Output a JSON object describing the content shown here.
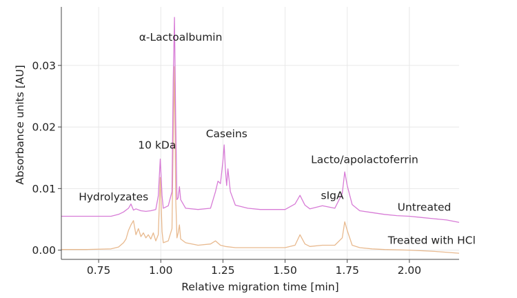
{
  "chart_data": {
    "type": "line",
    "title": "",
    "xlabel": "Relative migration time [min]",
    "ylabel": "Absorbance units [AU]",
    "xlim": [
      0.6,
      2.2
    ],
    "ylim": [
      -0.0015,
      0.0395
    ],
    "xticks": [
      0.75,
      1.0,
      1.25,
      1.5,
      1.75,
      2.0
    ],
    "xtick_labels": [
      "0.75",
      "1.00",
      "1.25",
      "1.50",
      "1.75",
      "2.00"
    ],
    "yticks": [
      0.0,
      0.01,
      0.02,
      0.03
    ],
    "ytick_labels": [
      "0.00",
      "0.01",
      "0.02",
      "0.03"
    ],
    "grid": true,
    "series": [
      {
        "name": "Untreated",
        "color": "#d77bd6",
        "points": [
          [
            0.6,
            0.0055
          ],
          [
            0.7,
            0.0055
          ],
          [
            0.8,
            0.0055
          ],
          [
            0.83,
            0.0058
          ],
          [
            0.85,
            0.0062
          ],
          [
            0.87,
            0.0068
          ],
          [
            0.88,
            0.0075
          ],
          [
            0.89,
            0.0065
          ],
          [
            0.9,
            0.0067
          ],
          [
            0.92,
            0.0064
          ],
          [
            0.94,
            0.0063
          ],
          [
            0.96,
            0.0064
          ],
          [
            0.98,
            0.0066
          ],
          [
            0.99,
            0.0088
          ],
          [
            0.998,
            0.0148
          ],
          [
            1.005,
            0.0088
          ],
          [
            1.01,
            0.0068
          ],
          [
            1.03,
            0.0072
          ],
          [
            1.045,
            0.0095
          ],
          [
            1.05,
            0.0275
          ],
          [
            1.055,
            0.0378
          ],
          [
            1.06,
            0.0208
          ],
          [
            1.065,
            0.0082
          ],
          [
            1.07,
            0.0085
          ],
          [
            1.075,
            0.0103
          ],
          [
            1.08,
            0.0082
          ],
          [
            1.1,
            0.0068
          ],
          [
            1.15,
            0.0066
          ],
          [
            1.2,
            0.0068
          ],
          [
            1.22,
            0.0095
          ],
          [
            1.23,
            0.0112
          ],
          [
            1.24,
            0.0108
          ],
          [
            1.25,
            0.0145
          ],
          [
            1.255,
            0.0171
          ],
          [
            1.26,
            0.013
          ],
          [
            1.265,
            0.0105
          ],
          [
            1.27,
            0.0132
          ],
          [
            1.28,
            0.0095
          ],
          [
            1.3,
            0.0073
          ],
          [
            1.35,
            0.0068
          ],
          [
            1.4,
            0.0066
          ],
          [
            1.5,
            0.0066
          ],
          [
            1.54,
            0.0075
          ],
          [
            1.56,
            0.0089
          ],
          [
            1.58,
            0.0073
          ],
          [
            1.6,
            0.0067
          ],
          [
            1.65,
            0.0072
          ],
          [
            1.7,
            0.0068
          ],
          [
            1.73,
            0.0092
          ],
          [
            1.74,
            0.0127
          ],
          [
            1.75,
            0.0105
          ],
          [
            1.77,
            0.0074
          ],
          [
            1.8,
            0.0064
          ],
          [
            1.85,
            0.0061
          ],
          [
            1.9,
            0.0058
          ],
          [
            1.95,
            0.0056
          ],
          [
            2.0,
            0.0055
          ],
          [
            2.05,
            0.0053
          ],
          [
            2.1,
            0.0051
          ],
          [
            2.15,
            0.0049
          ],
          [
            2.2,
            0.0045
          ]
        ]
      },
      {
        "name": "Treated with HCl",
        "color": "#e8b98e",
        "points": [
          [
            0.6,
            0.0001
          ],
          [
            0.7,
            0.0001
          ],
          [
            0.8,
            0.0002
          ],
          [
            0.83,
            0.0005
          ],
          [
            0.85,
            0.0012
          ],
          [
            0.86,
            0.0018
          ],
          [
            0.87,
            0.0032
          ],
          [
            0.88,
            0.0041
          ],
          [
            0.89,
            0.0048
          ],
          [
            0.9,
            0.0025
          ],
          [
            0.91,
            0.0035
          ],
          [
            0.92,
            0.0022
          ],
          [
            0.93,
            0.0028
          ],
          [
            0.94,
            0.002
          ],
          [
            0.95,
            0.0025
          ],
          [
            0.96,
            0.0018
          ],
          [
            0.97,
            0.0028
          ],
          [
            0.98,
            0.0015
          ],
          [
            0.99,
            0.0025
          ],
          [
            0.998,
            0.0118
          ],
          [
            1.005,
            0.003
          ],
          [
            1.01,
            0.0012
          ],
          [
            1.03,
            0.0015
          ],
          [
            1.045,
            0.0035
          ],
          [
            1.05,
            0.0182
          ],
          [
            1.055,
            0.0298
          ],
          [
            1.06,
            0.0085
          ],
          [
            1.065,
            0.002
          ],
          [
            1.07,
            0.0028
          ],
          [
            1.075,
            0.0041
          ],
          [
            1.08,
            0.0018
          ],
          [
            1.1,
            0.0012
          ],
          [
            1.15,
            0.0008
          ],
          [
            1.2,
            0.001
          ],
          [
            1.22,
            0.0015
          ],
          [
            1.24,
            0.0008
          ],
          [
            1.26,
            0.0006
          ],
          [
            1.3,
            0.0004
          ],
          [
            1.4,
            0.0004
          ],
          [
            1.5,
            0.0004
          ],
          [
            1.54,
            0.0008
          ],
          [
            1.56,
            0.0025
          ],
          [
            1.58,
            0.001
          ],
          [
            1.6,
            0.0006
          ],
          [
            1.65,
            0.0008
          ],
          [
            1.7,
            0.0008
          ],
          [
            1.73,
            0.002
          ],
          [
            1.74,
            0.0046
          ],
          [
            1.75,
            0.0032
          ],
          [
            1.77,
            0.0008
          ],
          [
            1.8,
            0.0004
          ],
          [
            1.85,
            0.0002
          ],
          [
            1.9,
            0.0001
          ],
          [
            2.0,
            0.0
          ],
          [
            2.1,
            -0.0002
          ],
          [
            2.2,
            -0.0005
          ]
        ]
      }
    ],
    "annotations": [
      {
        "text": "α-Lactoalbumin",
        "x": 1.08,
        "y": 0.034
      },
      {
        "text": "10 kDa",
        "x": 0.985,
        "y": 0.0165
      },
      {
        "text": "Caseins",
        "x": 1.265,
        "y": 0.0183
      },
      {
        "text": "Hydrolyzates",
        "x": 0.81,
        "y": 0.0081
      },
      {
        "text": "sIgA",
        "x": 1.69,
        "y": 0.0083
      },
      {
        "text": "Lacto/apolactoferrin",
        "x": 1.82,
        "y": 0.0141
      },
      {
        "text": "Untreated",
        "x": 2.06,
        "y": 0.0064
      },
      {
        "text": "Treated with HCl",
        "x": 2.09,
        "y": 0.001
      }
    ]
  }
}
